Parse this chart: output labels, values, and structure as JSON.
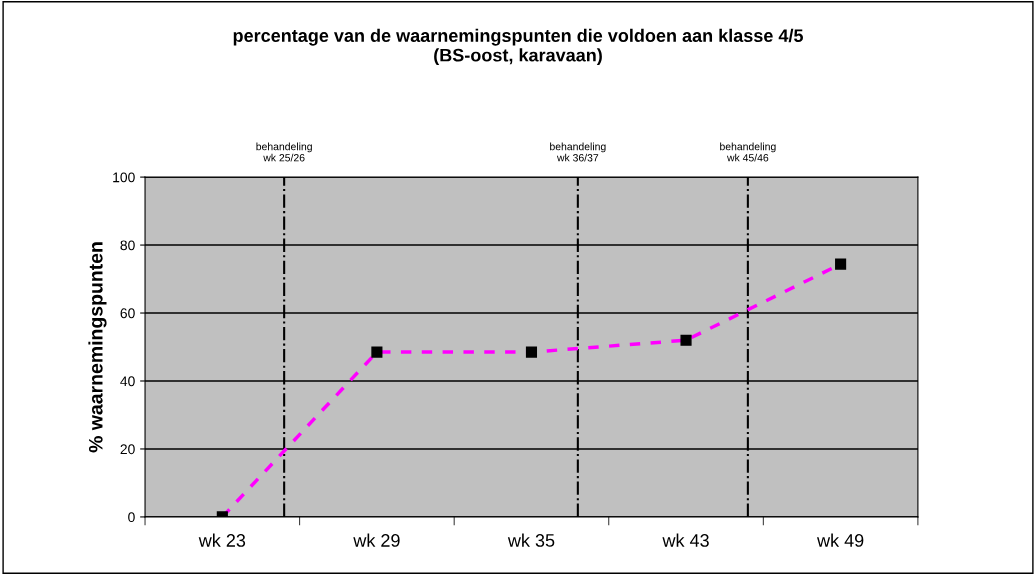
{
  "chart_data": {
    "type": "line",
    "title": "percentage van de waarnemingspunten die voldoen aan klasse 4/5\n(BS-oost, karavaan)",
    "ylabel": "% waarnemingspunten",
    "categories": [
      "wk 23",
      "wk 29",
      "wk 35",
      "wk 43",
      "wk 49"
    ],
    "series": [
      {
        "color": "#ff00ff",
        "values": [
          0,
          48.5,
          48.5,
          52,
          74.4
        ]
      }
    ],
    "ylim": [
      0,
      100
    ],
    "yticks": [
      0,
      20,
      40,
      60,
      80,
      100
    ],
    "grid": "y",
    "legend": false,
    "marker": "square",
    "line_style": "dashed",
    "annotations": [
      "behandeling\nwk 25/26",
      "behandeling\nwk 36/37",
      "behandeling\nwk 45/46"
    ]
  }
}
